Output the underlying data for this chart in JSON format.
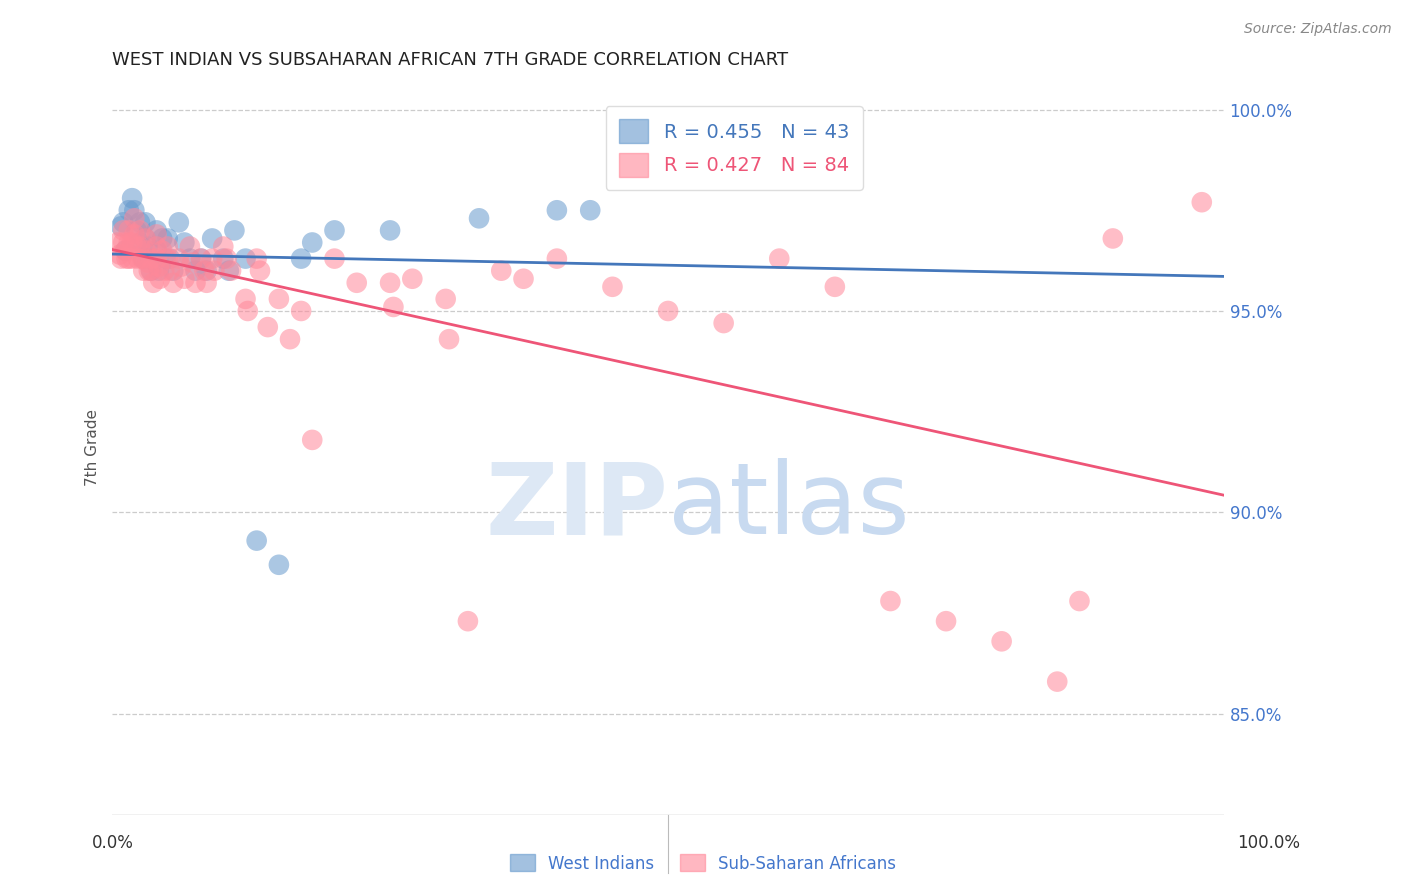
{
  "title": "WEST INDIAN VS SUBSAHARAN AFRICAN 7TH GRADE CORRELATION CHART",
  "source": "Source: ZipAtlas.com",
  "ylabel": "7th Grade",
  "xlim": [
    0.0,
    1.0
  ],
  "ylim": [
    0.825,
    1.007
  ],
  "west_indian_color": "#6699cc",
  "subsaharan_color": "#ff8899",
  "blue_line_color": "#4477bb",
  "pink_line_color": "#ee5577",
  "grid_color": "#cccccc",
  "background_color": "#ffffff",
  "watermark_zip_color": "#dde8f5",
  "watermark_atlas_color": "#c8daf0",
  "west_indians_x": [
    0.008,
    0.01,
    0.012,
    0.015,
    0.018,
    0.02,
    0.022,
    0.025,
    0.025,
    0.028,
    0.03,
    0.03,
    0.032,
    0.034,
    0.035,
    0.04,
    0.04,
    0.042,
    0.045,
    0.048,
    0.05,
    0.052,
    0.055,
    0.06,
    0.065,
    0.07,
    0.075,
    0.08,
    0.085,
    0.09,
    0.1,
    0.105,
    0.11,
    0.12,
    0.13,
    0.15,
    0.17,
    0.18,
    0.2,
    0.25,
    0.33,
    0.4,
    0.43
  ],
  "west_indians_y": [
    0.971,
    0.972,
    0.965,
    0.975,
    0.978,
    0.975,
    0.97,
    0.972,
    0.967,
    0.963,
    0.972,
    0.968,
    0.966,
    0.963,
    0.96,
    0.97,
    0.965,
    0.96,
    0.968,
    0.963,
    0.968,
    0.963,
    0.96,
    0.972,
    0.967,
    0.963,
    0.96,
    0.963,
    0.96,
    0.968,
    0.963,
    0.96,
    0.97,
    0.963,
    0.893,
    0.887,
    0.963,
    0.967,
    0.97,
    0.97,
    0.973,
    0.975,
    0.975
  ],
  "subsaharan_x": [
    0.005,
    0.007,
    0.008,
    0.01,
    0.01,
    0.012,
    0.013,
    0.015,
    0.015,
    0.015,
    0.018,
    0.018,
    0.02,
    0.02,
    0.022,
    0.023,
    0.025,
    0.025,
    0.027,
    0.028,
    0.03,
    0.03,
    0.032,
    0.033,
    0.035,
    0.035,
    0.037,
    0.04,
    0.04,
    0.04,
    0.042,
    0.043,
    0.045,
    0.047,
    0.05,
    0.05,
    0.052,
    0.055,
    0.06,
    0.062,
    0.065,
    0.07,
    0.072,
    0.075,
    0.08,
    0.083,
    0.085,
    0.09,
    0.092,
    0.1,
    0.103,
    0.107,
    0.12,
    0.122,
    0.13,
    0.133,
    0.14,
    0.15,
    0.16,
    0.17,
    0.18,
    0.2,
    0.22,
    0.25,
    0.253,
    0.27,
    0.3,
    0.303,
    0.32,
    0.35,
    0.37,
    0.4,
    0.45,
    0.5,
    0.55,
    0.6,
    0.65,
    0.7,
    0.75,
    0.8,
    0.85,
    0.87,
    0.9,
    0.98
  ],
  "subsaharan_y": [
    0.967,
    0.964,
    0.963,
    0.97,
    0.967,
    0.965,
    0.963,
    0.97,
    0.967,
    0.963,
    0.967,
    0.963,
    0.973,
    0.969,
    0.966,
    0.963,
    0.97,
    0.966,
    0.963,
    0.96,
    0.968,
    0.965,
    0.962,
    0.96,
    0.963,
    0.96,
    0.957,
    0.969,
    0.966,
    0.963,
    0.961,
    0.958,
    0.965,
    0.96,
    0.966,
    0.963,
    0.96,
    0.957,
    0.963,
    0.961,
    0.958,
    0.966,
    0.962,
    0.957,
    0.963,
    0.96,
    0.957,
    0.963,
    0.96,
    0.966,
    0.963,
    0.96,
    0.953,
    0.95,
    0.963,
    0.96,
    0.946,
    0.953,
    0.943,
    0.95,
    0.918,
    0.963,
    0.957,
    0.957,
    0.951,
    0.958,
    0.953,
    0.943,
    0.873,
    0.96,
    0.958,
    0.963,
    0.956,
    0.95,
    0.947,
    0.963,
    0.956,
    0.878,
    0.873,
    0.868,
    0.858,
    0.878,
    0.968,
    0.977
  ]
}
